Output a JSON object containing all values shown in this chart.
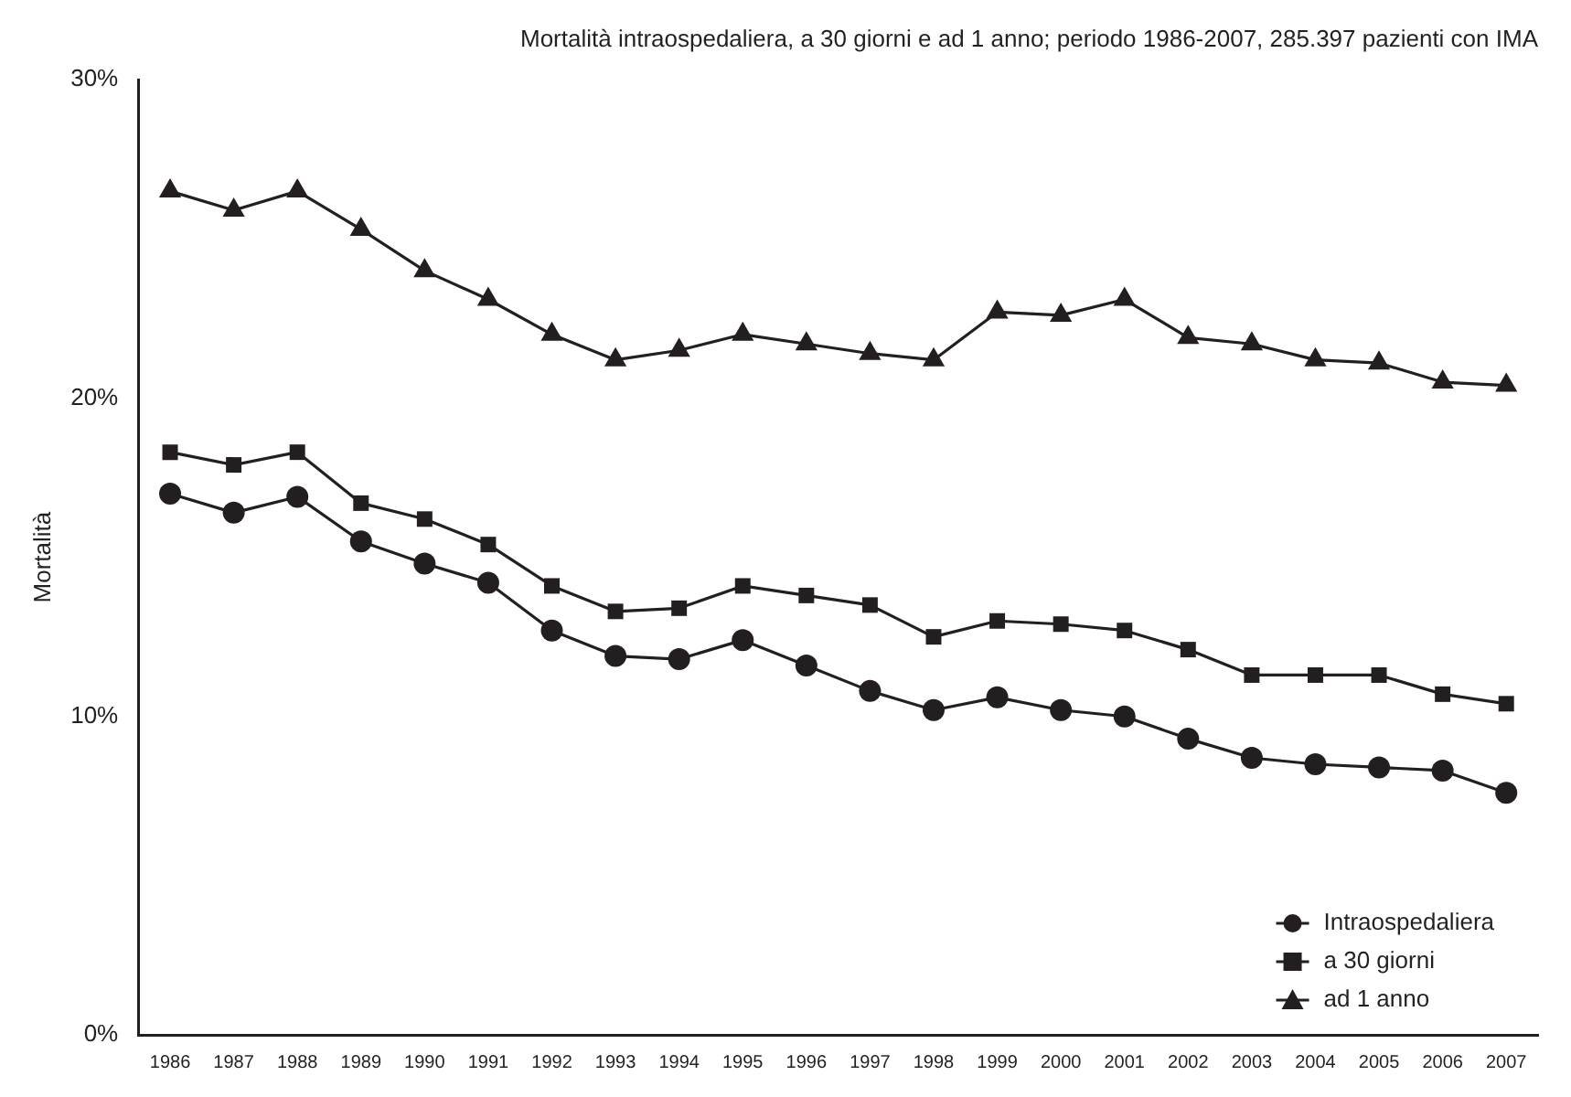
{
  "chart_data": {
    "type": "line",
    "title": "Mortalità intraospedaliera, a 30 giorni e ad 1 anno; periodo 1986-2007, 285.397 pazienti con IMA",
    "ylabel": "Mortalità",
    "categories": [
      "1986",
      "1987",
      "1988",
      "1989",
      "1990",
      "1991",
      "1992",
      "1993",
      "1994",
      "1995",
      "1996",
      "1997",
      "1998",
      "1999",
      "2000",
      "2001",
      "2002",
      "2003",
      "2004",
      "2005",
      "2006",
      "2007"
    ],
    "series": [
      {
        "name": "Intraospedaliera",
        "color": "#231f20",
        "marker": "circle",
        "values": [
          17.0,
          16.4,
          16.9,
          15.5,
          14.8,
          14.2,
          12.7,
          11.9,
          11.8,
          12.4,
          11.6,
          10.8,
          10.2,
          10.6,
          10.2,
          10.0,
          9.3,
          8.7,
          8.5,
          8.4,
          8.3,
          7.6
        ]
      },
      {
        "name": "a 30 giorni",
        "color": "#231f20",
        "marker": "square",
        "values": [
          18.3,
          17.9,
          18.3,
          16.7,
          16.2,
          15.4,
          14.1,
          13.3,
          13.4,
          14.1,
          13.8,
          13.5,
          12.5,
          13.0,
          12.9,
          12.7,
          12.1,
          11.3,
          11.3,
          11.3,
          10.7,
          10.4
        ]
      },
      {
        "name": "ad 1 anno",
        "color": "#231f20",
        "marker": "triangle",
        "values": [
          26.5,
          25.9,
          26.5,
          25.3,
          24.0,
          23.1,
          22.0,
          21.2,
          21.5,
          22.0,
          21.7,
          21.4,
          21.2,
          22.7,
          22.6,
          23.1,
          21.9,
          21.7,
          21.2,
          21.1,
          20.5,
          20.4
        ]
      }
    ],
    "ylim": [
      0,
      30
    ],
    "yticks": [
      {
        "value": 0,
        "label": "0%"
      },
      {
        "value": 10,
        "label": "10%"
      },
      {
        "value": 20,
        "label": "20%"
      },
      {
        "value": 30,
        "label": "30%"
      }
    ],
    "grid": false,
    "legend": "bottom right",
    "line_style": "solid"
  }
}
